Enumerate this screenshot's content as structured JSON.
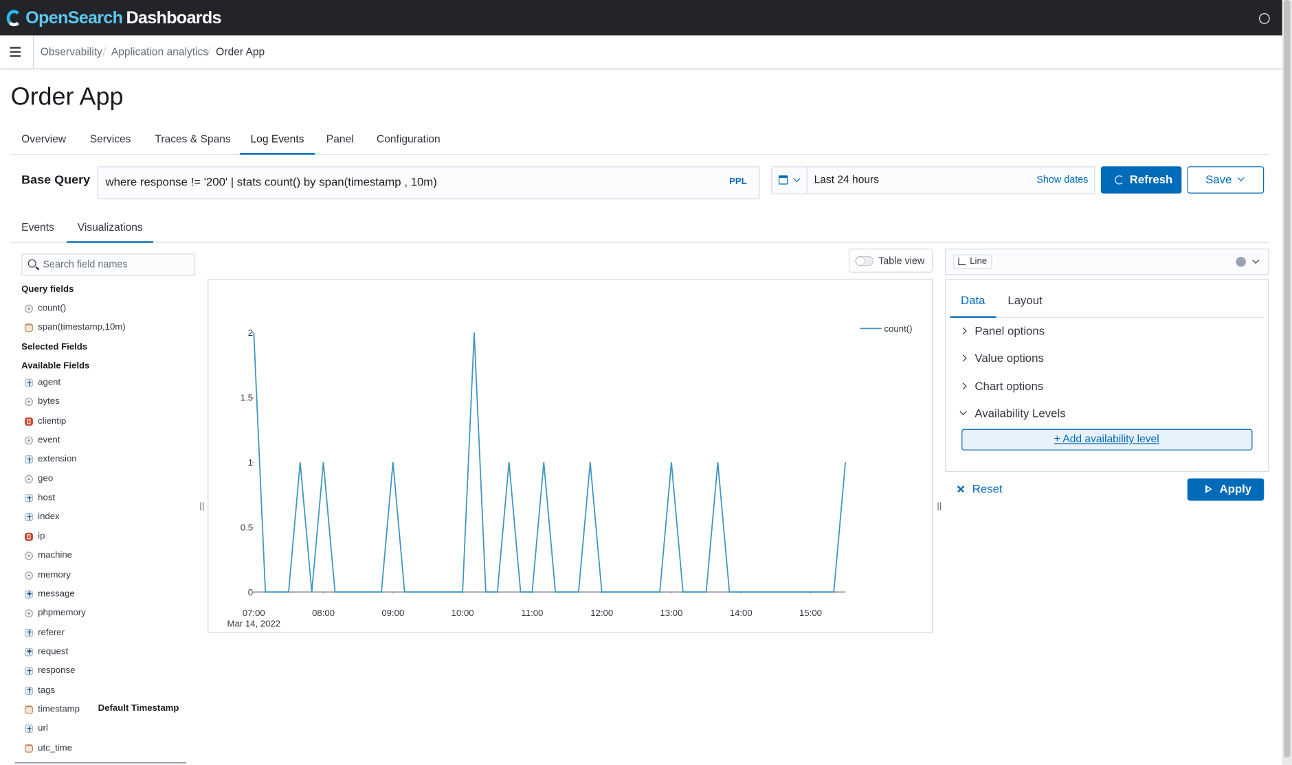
{
  "header": {
    "brand_a": "OpenSearch",
    "brand_b": "Dashboards"
  },
  "breadcrumbs": [
    "Observability",
    "Application analytics",
    "Order App"
  ],
  "title": "Order App",
  "tabs": [
    "Overview",
    "Services",
    "Traces & Spans",
    "Log Events",
    "Panel",
    "Configuration"
  ],
  "active_tab": "Log Events",
  "query": {
    "label": "Base Query",
    "text": "where response != '200' | stats count() by span(timestamp , 10m)",
    "language": "PPL"
  },
  "date_picker": {
    "range": "Last 24 hours",
    "show_dates": "Show dates"
  },
  "buttons": {
    "refresh": "Refresh",
    "save": "Save"
  },
  "subtabs": [
    "Events",
    "Visualizations"
  ],
  "active_subtab": "Visualizations",
  "sidebar": {
    "search_placeholder": "Search field names",
    "query_fields_title": "Query fields",
    "query_fields": [
      {
        "name": "count()",
        "kind": "number"
      },
      {
        "name": "span(timestamp,10m)",
        "kind": "date"
      }
    ],
    "selected_title": "Selected Fields",
    "available_title": "Available Fields",
    "available_fields": [
      {
        "name": "agent",
        "kind": "string"
      },
      {
        "name": "bytes",
        "kind": "number"
      },
      {
        "name": "clientip",
        "kind": "ip"
      },
      {
        "name": "event",
        "kind": "number"
      },
      {
        "name": "extension",
        "kind": "string"
      },
      {
        "name": "geo",
        "kind": "number"
      },
      {
        "name": "host",
        "kind": "string"
      },
      {
        "name": "index",
        "kind": "string"
      },
      {
        "name": "ip",
        "kind": "ip"
      },
      {
        "name": "machine",
        "kind": "number"
      },
      {
        "name": "memory",
        "kind": "number"
      },
      {
        "name": "message",
        "kind": "string"
      },
      {
        "name": "phpmemory",
        "kind": "number"
      },
      {
        "name": "referer",
        "kind": "string"
      },
      {
        "name": "request",
        "kind": "string"
      },
      {
        "name": "response",
        "kind": "string"
      },
      {
        "name": "tags",
        "kind": "string"
      },
      {
        "name": "timestamp",
        "kind": "date",
        "badge": "Default Timestamp"
      },
      {
        "name": "url",
        "kind": "string"
      },
      {
        "name": "utc_time",
        "kind": "date"
      }
    ]
  },
  "table_view": "Table view",
  "chart_data": {
    "type": "line",
    "x": [
      "07:00",
      "07:10",
      "07:30",
      "07:40",
      "07:50",
      "08:00",
      "08:10",
      "08:50",
      "09:00",
      "09:10",
      "10:00",
      "10:10",
      "10:20",
      "10:30",
      "10:40",
      "10:50",
      "11:00",
      "11:10",
      "11:20",
      "11:40",
      "11:50",
      "12:00",
      "12:50",
      "13:00",
      "13:10",
      "13:30",
      "13:40",
      "13:50",
      "15:20",
      "15:30"
    ],
    "series": [
      {
        "name": "count()",
        "color": "#3f97c1",
        "values": [
          2,
          0,
          0,
          1,
          0,
          1,
          0,
          0,
          1,
          0,
          0,
          2,
          0,
          0,
          1,
          0,
          0,
          1,
          0,
          0,
          1,
          0,
          0,
          1,
          0,
          0,
          1,
          0,
          0,
          1
        ]
      }
    ],
    "xlim": [
      "07:00",
      "15:30"
    ],
    "xticks": [
      "07:00",
      "08:00",
      "09:00",
      "10:00",
      "11:00",
      "12:00",
      "13:00",
      "14:00",
      "15:00"
    ],
    "x_date_label": "Mar 14, 2022",
    "ylim": [
      0,
      2
    ],
    "yticks": [
      0,
      0.5,
      1,
      1.5,
      2
    ],
    "grid": false,
    "legend": "top-right"
  },
  "config": {
    "chart_type": "Line",
    "tabs": [
      "Data",
      "Layout"
    ],
    "active_tab": "Data",
    "sections": [
      {
        "title": "Panel options",
        "open": false
      },
      {
        "title": "Value options",
        "open": false
      },
      {
        "title": "Chart options",
        "open": false
      },
      {
        "title": "Availability Levels",
        "open": true
      }
    ],
    "add_level": "+ Add availability level",
    "reset": "Reset",
    "apply": "Apply"
  }
}
